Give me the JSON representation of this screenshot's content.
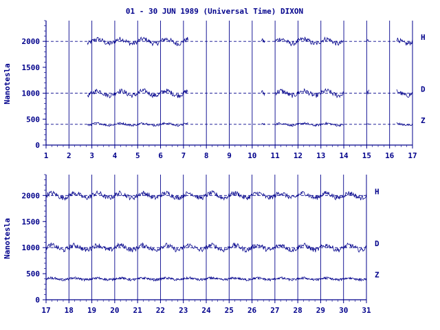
{
  "chart_data": {
    "type": "line",
    "title": "01 - 30 JUN 1989 (Universal Time) DIXON",
    "ylabel": "Nanotesla",
    "color": "#00008b",
    "ylim": [
      0,
      2400
    ],
    "y_ticks": [
      0,
      500,
      1000,
      1500,
      2000
    ],
    "reference_lines": [
      400,
      1000,
      2000
    ],
    "series_labels": [
      "H",
      "D",
      "Z"
    ],
    "panels": [
      {
        "x_range": [
          1,
          17
        ],
        "x_ticks": [
          "1",
          "2",
          "3",
          "4",
          "5",
          "6",
          "7",
          "8",
          "9",
          "10",
          "11",
          "12",
          "13",
          "14",
          "15",
          "16",
          "17"
        ],
        "series": [
          {
            "name": "H",
            "baseline": 2000,
            "segments": [
              [
                2.8,
                7.2
              ],
              [
                10.4,
                10.55
              ],
              [
                11.0,
                14.0
              ],
              [
                15.0,
                15.1
              ],
              [
                16.3,
                17.0
              ]
            ]
          },
          {
            "name": "D",
            "baseline": 1000,
            "segments": [
              [
                2.8,
                7.2
              ],
              [
                10.4,
                10.55
              ],
              [
                11.0,
                14.0
              ],
              [
                15.0,
                15.1
              ],
              [
                16.3,
                17.0
              ]
            ]
          },
          {
            "name": "Z",
            "baseline": 400,
            "segments": [
              [
                2.8,
                7.2
              ],
              [
                10.4,
                10.55
              ],
              [
                11.0,
                14.0
              ],
              [
                15.0,
                15.1
              ],
              [
                16.3,
                17.0
              ]
            ]
          }
        ]
      },
      {
        "x_range": [
          17,
          31
        ],
        "x_ticks": [
          "17",
          "18",
          "19",
          "20",
          "21",
          "22",
          "23",
          "24",
          "25",
          "26",
          "27",
          "28",
          "29",
          "30",
          "31"
        ],
        "series": [
          {
            "name": "H",
            "baseline": 2000,
            "segments": [
              [
                17.0,
                31.0
              ]
            ]
          },
          {
            "name": "D",
            "baseline": 1000,
            "segments": [
              [
                17.0,
                31.0
              ]
            ]
          },
          {
            "name": "Z",
            "baseline": 400,
            "segments": [
              [
                17.0,
                31.0
              ]
            ]
          }
        ]
      }
    ]
  }
}
